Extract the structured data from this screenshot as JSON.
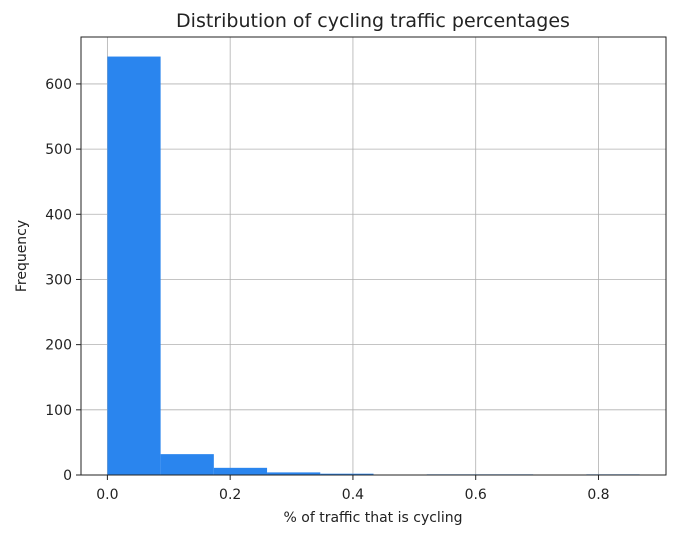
{
  "chart_data": {
    "type": "bar",
    "title": "Distribution of cycling traffic percentages",
    "xlabel": "% of traffic that is cycling",
    "ylabel": "Frequency",
    "xlim": [
      -0.043,
      0.91
    ],
    "ylim": [
      0,
      672
    ],
    "xticks": [
      {
        "value": 0.0,
        "label": "0.0"
      },
      {
        "value": 0.2,
        "label": "0.2"
      },
      {
        "value": 0.4,
        "label": "0.4"
      },
      {
        "value": 0.6,
        "label": "0.6"
      },
      {
        "value": 0.8,
        "label": "0.8"
      }
    ],
    "yticks": [
      {
        "value": 0,
        "label": "0"
      },
      {
        "value": 100,
        "label": "100"
      },
      {
        "value": 200,
        "label": "200"
      },
      {
        "value": 300,
        "label": "300"
      },
      {
        "value": 400,
        "label": "400"
      },
      {
        "value": 500,
        "label": "500"
      },
      {
        "value": 600,
        "label": "600"
      }
    ],
    "bin_edges": [
      0.0,
      0.0867,
      0.1734,
      0.2601,
      0.3468,
      0.4335,
      0.5202,
      0.6069,
      0.6936,
      0.7803,
      0.867
    ],
    "values": [
      642,
      32,
      11,
      4,
      2,
      0,
      1,
      1,
      0,
      1
    ],
    "bar_color": "#2a85ee",
    "grid": true
  }
}
